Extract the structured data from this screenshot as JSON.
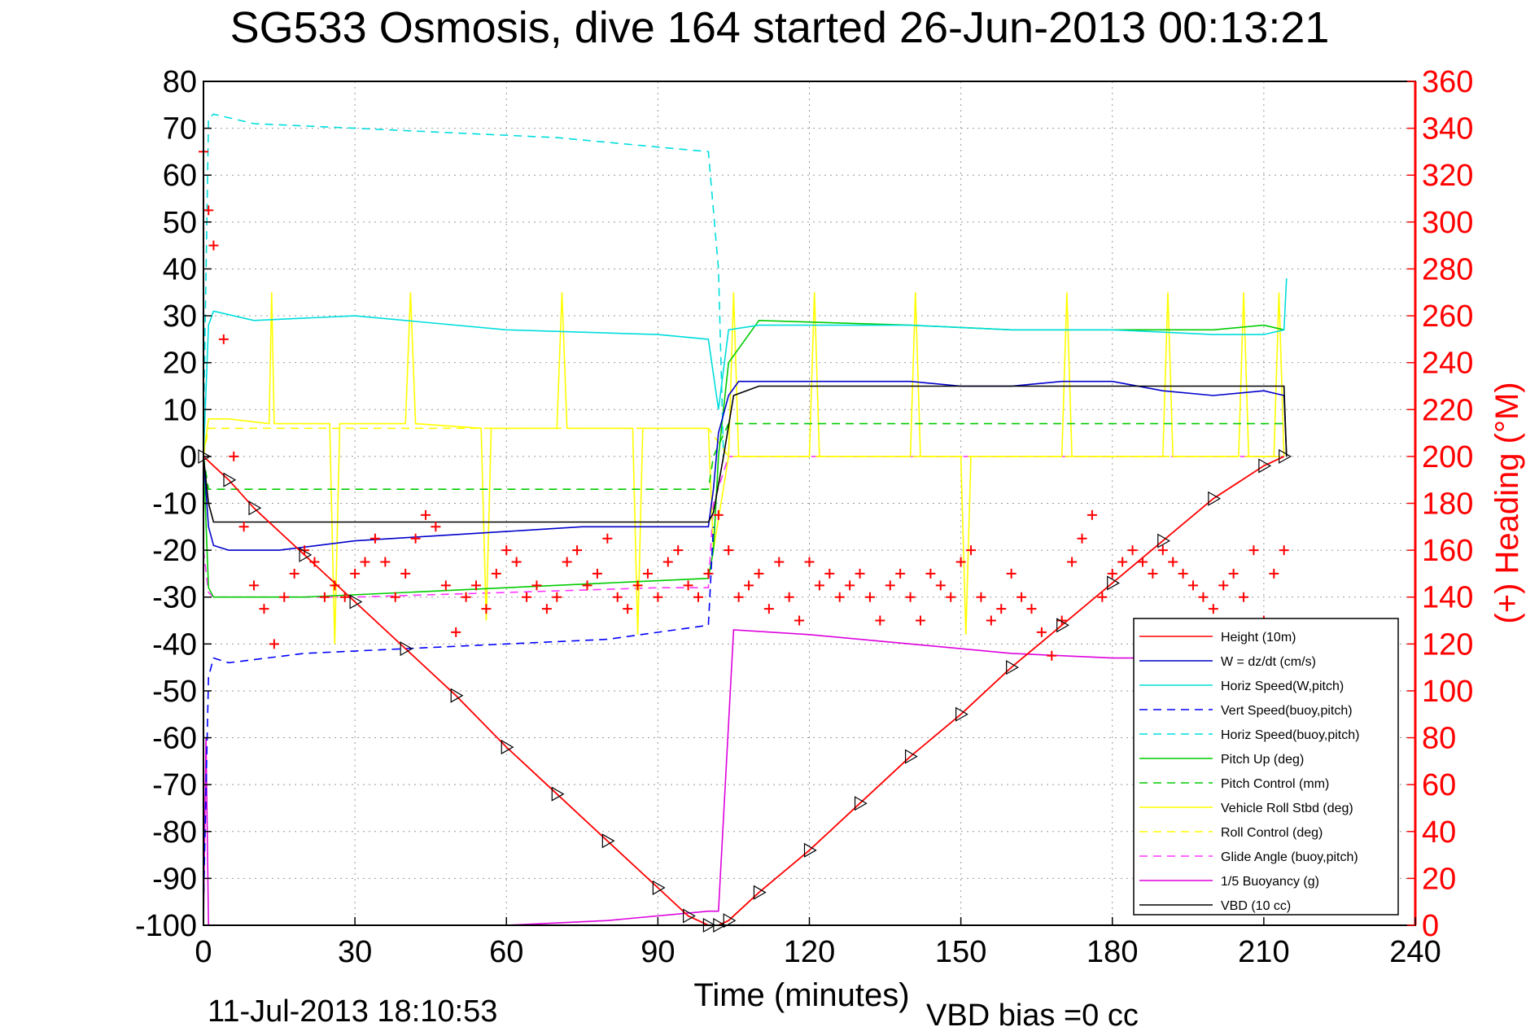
{
  "chart_data": {
    "type": "line",
    "title": "SG533 Osmosis, dive 164 started 26-Jun-2013 00:13:21",
    "xlabel": "Time (minutes)",
    "ylabel": "",
    "y2label": "(+) Heading (°M)",
    "xlim": [
      0,
      240
    ],
    "ylim": [
      -100,
      80
    ],
    "y2lim": [
      0,
      360
    ],
    "xticks": [
      "0",
      "30",
      "60",
      "90",
      "120",
      "150",
      "180",
      "210",
      "240"
    ],
    "yticks": [
      "80",
      "70",
      "60",
      "50",
      "40",
      "30",
      "20",
      "10",
      "0",
      "-10",
      "-20",
      "-30",
      "-40",
      "-50",
      "-60",
      "-70",
      "-80",
      "-90",
      "-100"
    ],
    "y2ticks": [
      "360",
      "340",
      "320",
      "300",
      "280",
      "260",
      "240",
      "220",
      "200",
      "180",
      "160",
      "140",
      "120",
      "100",
      "80",
      "60",
      "40",
      "20",
      "0"
    ],
    "grid": true,
    "legend_position": "bottom-right",
    "footer_left": "11-Jul-2013 18:10:53",
    "footer_right": "VBD bias =0 cc",
    "colors": {
      "height": "#ff0000",
      "w": "#0000cc",
      "horiz": "#00dddd",
      "pitch": "#00cc00",
      "roll": "#ffff00",
      "glide": "#ff33ff",
      "buoy": "#dd00dd",
      "vbd": "#000000",
      "heading": "#ff0000"
    },
    "series": [
      {
        "name": "Height (10m)",
        "color": "#ff0000",
        "dash": "solid",
        "x": [
          0,
          5,
          10,
          20,
          30,
          40,
          50,
          60,
          70,
          80,
          90,
          96,
          100,
          102,
          104,
          110,
          120,
          130,
          140,
          150,
          160,
          170,
          180,
          190,
          200,
          210,
          214
        ],
        "y": [
          0,
          -5,
          -11,
          -21,
          -31,
          -41,
          -51,
          -62,
          -72,
          -82,
          -92,
          -98,
          -100,
          -100,
          -99,
          -93,
          -84,
          -74,
          -64,
          -55,
          -45,
          -36,
          -27,
          -18,
          -9,
          -2,
          0
        ]
      },
      {
        "name": "W = dz/dt (cm/s)",
        "color": "#0000cc",
        "dash": "solid",
        "x": [
          0,
          1,
          2,
          5,
          15,
          30,
          45,
          60,
          75,
          90,
          100,
          101,
          102,
          104,
          106,
          120,
          140,
          150,
          160,
          170,
          180,
          190,
          200,
          210,
          214,
          214.5
        ],
        "y": [
          0,
          -15,
          -19,
          -20,
          -20,
          -18,
          -17,
          -16,
          -15,
          -15,
          -15,
          -7,
          5,
          13,
          16,
          16,
          16,
          15,
          15,
          16,
          16,
          14,
          13,
          14,
          13,
          0
        ]
      },
      {
        "name": "Horiz Speed(W,pitch)",
        "color": "#00dddd",
        "dash": "solid",
        "x": [
          0,
          1,
          2,
          10,
          30,
          60,
          90,
          100,
          102,
          104,
          110,
          140,
          160,
          180,
          200,
          210,
          214,
          214.5
        ],
        "y": [
          0,
          28,
          31,
          29,
          30,
          27,
          26,
          25,
          10,
          27,
          28,
          28,
          27,
          27,
          26,
          26,
          27,
          38
        ]
      },
      {
        "name": "Vert Speed(buoy,pitch)",
        "color": "#0000ff",
        "dash": "dash",
        "x": [
          0,
          1,
          2,
          5,
          20,
          40,
          60,
          80,
          100,
          101
        ],
        "y": [
          -96,
          -47,
          -43,
          -44,
          -42,
          -41,
          -40,
          -39,
          -36,
          -15
        ]
      },
      {
        "name": "Horiz Speed(buoy,pitch)",
        "color": "#00dddd",
        "dash": "dash",
        "x": [
          0,
          1,
          2,
          10,
          30,
          50,
          70,
          90,
          100,
          102,
          103
        ],
        "y": [
          5,
          72,
          73,
          71,
          70,
          69,
          68,
          66,
          65,
          40,
          0
        ]
      },
      {
        "name": "Pitch Up (deg)",
        "color": "#00cc00",
        "dash": "solid",
        "x": [
          0,
          1,
          2,
          20,
          40,
          60,
          80,
          100,
          101,
          102,
          104,
          110,
          140,
          160,
          180,
          200,
          210,
          214
        ],
        "y": [
          0,
          -28,
          -30,
          -30,
          -29,
          -28,
          -27,
          -26,
          -20,
          0,
          20,
          29,
          28,
          27,
          27,
          27,
          28,
          27
        ]
      },
      {
        "name": "Pitch Control (mm)",
        "color": "#00cc00",
        "dash": "dash",
        "x": [
          0,
          1,
          5,
          100,
          101,
          104,
          214
        ],
        "y": [
          0,
          -7,
          -7,
          -7,
          0,
          7,
          7
        ]
      },
      {
        "name": "Vehicle Roll Stbd (deg)",
        "color": "#ffff00",
        "dash": "solid",
        "x": [
          0,
          1,
          5,
          13,
          13.5,
          14,
          25,
          26,
          27,
          40,
          41,
          42,
          55,
          56,
          57,
          70,
          71,
          72,
          85,
          86,
          87,
          100,
          101,
          104,
          105,
          106,
          120,
          121,
          122,
          140,
          141,
          142,
          150,
          151,
          152,
          170,
          171,
          172,
          190,
          191,
          192,
          205,
          206,
          207,
          212,
          213,
          214
        ],
        "y": [
          0,
          8,
          8,
          7,
          35,
          7,
          7,
          -40,
          7,
          7,
          35,
          7,
          6,
          -35,
          6,
          6,
          35,
          6,
          6,
          -38,
          6,
          6,
          -20,
          0,
          35,
          0,
          0,
          35,
          0,
          0,
          35,
          0,
          0,
          -38,
          0,
          0,
          35,
          0,
          0,
          35,
          0,
          0,
          35,
          0,
          0,
          35,
          0
        ]
      },
      {
        "name": "Roll Control (deg)",
        "color": "#ffff00",
        "dash": "dash",
        "x": [
          0,
          1,
          5,
          20,
          35,
          50,
          65,
          80,
          100,
          104,
          130,
          160,
          190,
          214
        ],
        "y": [
          0,
          6,
          6,
          6,
          6,
          6,
          6,
          6,
          6,
          0,
          0,
          0,
          0,
          0
        ]
      },
      {
        "name": "Glide Angle (buoy,pitch)",
        "color": "#ff33ff",
        "dash": "dash",
        "x": [
          0,
          1,
          2,
          30,
          60,
          90,
          100,
          101,
          104,
          214
        ],
        "y": [
          -20,
          -29,
          -30,
          -30,
          -29,
          -28,
          -28,
          -10,
          0,
          0
        ]
      },
      {
        "name": "1/5 Buoyancy (g)",
        "color": "#dd00dd",
        "dash": "solid",
        "x": [
          0,
          0.5,
          1,
          60,
          80,
          100,
          102,
          105,
          120,
          140,
          160,
          180,
          190
        ],
        "y": [
          -100,
          -60,
          -100,
          -100,
          -99,
          -97,
          -97,
          -37,
          -38,
          -40,
          -42,
          -43,
          -43
        ]
      },
      {
        "name": "VBD (10 cc)",
        "color": "#000000",
        "dash": "solid",
        "x": [
          0,
          1,
          2,
          100,
          101,
          103,
          105,
          110,
          214,
          214.5
        ],
        "y": [
          0,
          -10,
          -14,
          -14,
          -12,
          0,
          13,
          15,
          15,
          0
        ]
      }
    ],
    "heading": {
      "name": "(+) Heading",
      "color": "#ff0000",
      "x": [
        0,
        1,
        2,
        4,
        6,
        8,
        10,
        12,
        14,
        16,
        18,
        20,
        22,
        24,
        26,
        28,
        30,
        32,
        34,
        36,
        38,
        40,
        42,
        44,
        46,
        48,
        50,
        52,
        54,
        56,
        58,
        60,
        62,
        64,
        66,
        68,
        70,
        72,
        74,
        76,
        78,
        80,
        82,
        84,
        86,
        88,
        90,
        92,
        94,
        96,
        98,
        100,
        102,
        104,
        106,
        108,
        110,
        112,
        114,
        116,
        118,
        120,
        122,
        124,
        126,
        128,
        130,
        132,
        134,
        136,
        138,
        140,
        142,
        144,
        146,
        148,
        150,
        152,
        154,
        156,
        158,
        160,
        162,
        164,
        166,
        168,
        170,
        172,
        174,
        176,
        178,
        180,
        182,
        184,
        186,
        188,
        190,
        192,
        194,
        196,
        198,
        200,
        202,
        204,
        206,
        208,
        210,
        212,
        214
      ],
      "y": [
        330,
        305,
        290,
        250,
        200,
        170,
        145,
        135,
        120,
        140,
        150,
        160,
        155,
        140,
        145,
        140,
        150,
        155,
        165,
        155,
        140,
        150,
        165,
        175,
        170,
        145,
        125,
        140,
        145,
        135,
        150,
        160,
        155,
        140,
        145,
        135,
        140,
        155,
        160,
        145,
        150,
        165,
        140,
        135,
        145,
        150,
        140,
        155,
        160,
        145,
        140,
        150,
        175,
        160,
        140,
        145,
        150,
        135,
        155,
        140,
        130,
        155,
        145,
        150,
        140,
        145,
        150,
        140,
        130,
        145,
        150,
        140,
        130,
        150,
        145,
        140,
        155,
        160,
        140,
        130,
        135,
        150,
        140,
        135,
        125,
        115,
        130,
        155,
        165,
        175,
        140,
        150,
        155,
        160,
        155,
        150,
        160,
        155,
        150,
        145,
        140,
        135,
        145,
        150,
        140,
        160,
        130,
        150,
        160
      ]
    }
  }
}
